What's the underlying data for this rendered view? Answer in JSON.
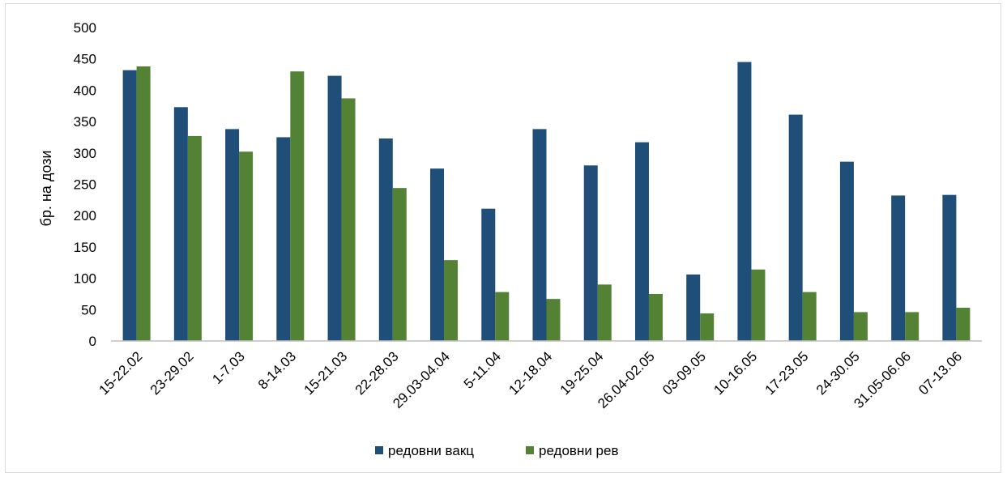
{
  "colors": {
    "series1": "#1f4e79",
    "series2": "#548235",
    "axis": "#bfbfbf"
  },
  "chart_data": {
    "type": "bar",
    "title": "",
    "xlabel": "",
    "ylabel": "бр. на дози",
    "ylim": [
      0,
      500
    ],
    "yticks": [
      0,
      50,
      100,
      150,
      200,
      250,
      300,
      350,
      400,
      450,
      500
    ],
    "grid": false,
    "legend_position": "bottom",
    "categories": [
      "15-22.02",
      "23-29.02",
      "1-7.03",
      "8-14.03",
      "15-21.03",
      "22-28.03",
      "29.03-04.04",
      "5-11.04",
      "12-18.04",
      "19-25.04",
      "26.04-02.05",
      "03-09.05",
      "10-16.05",
      "17-23.05",
      "24-30.05",
      "31.05-06.06",
      "07-13.06"
    ],
    "series": [
      {
        "name": "редовни вакц",
        "values": [
          432,
          373,
          338,
          325,
          423,
          323,
          275,
          211,
          338,
          280,
          317,
          106,
          445,
          361,
          286,
          232,
          233
        ]
      },
      {
        "name": "редовни рев",
        "values": [
          438,
          327,
          302,
          430,
          387,
          244,
          129,
          78,
          67,
          90,
          75,
          44,
          114,
          78,
          46,
          46,
          53
        ]
      }
    ]
  }
}
